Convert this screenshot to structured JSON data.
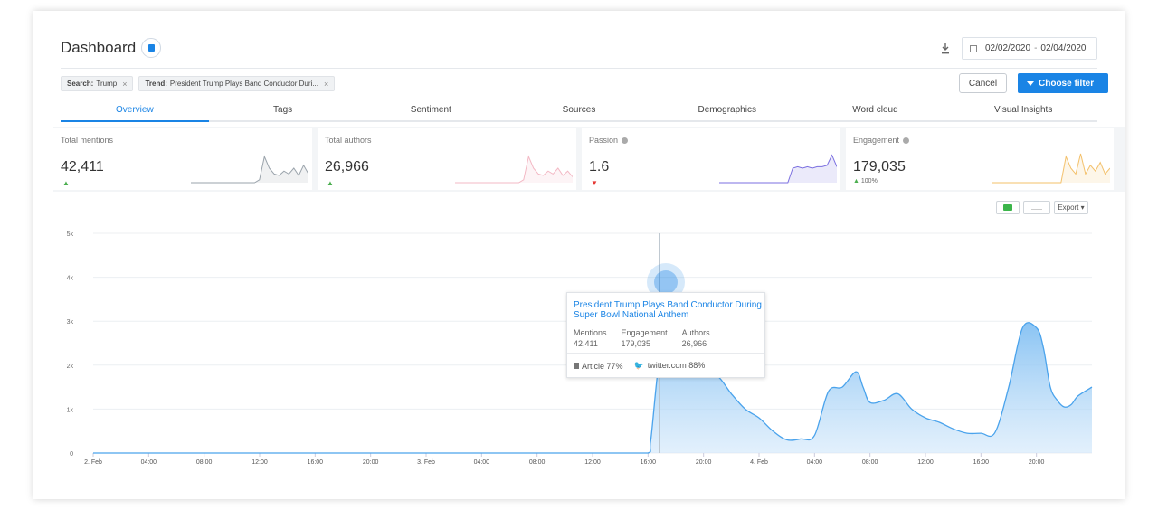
{
  "header": {
    "title": "Dashboard"
  },
  "date_range": {
    "from": "02/02/2020",
    "separator": "-",
    "to": "02/04/2020"
  },
  "filters": [
    {
      "key": "Search:",
      "value": "Trump"
    },
    {
      "key": "Trend:",
      "value": "President Trump Plays Band Conductor Duri..."
    }
  ],
  "filter_remove_glyph": "×",
  "buttons": {
    "cancel": "Cancel",
    "choose_filter": "Choose filter"
  },
  "tabs": [
    "Overview",
    "Tags",
    "Sentiment",
    "Sources",
    "Demographics",
    "Word cloud",
    "Visual Insights"
  ],
  "active_tab": "Overview",
  "cards": [
    {
      "label": "Total mentions",
      "value": "42,411",
      "trend": "up",
      "color": "#9aa3ab"
    },
    {
      "label": "Total authors",
      "value": "26,966",
      "trend": "up",
      "color": "#f3b8c4"
    },
    {
      "label": "Passion",
      "value": "1.6",
      "trend": "down",
      "color": "#7b6fe0"
    },
    {
      "label": "Engagement",
      "value": "179,035",
      "trend": "up",
      "sub": "100%",
      "color": "#f3c06a"
    }
  ],
  "chart_tools": {
    "export": "Export"
  },
  "tooltip": {
    "title": "President Trump Plays Band Conductor During Super Bowl National Anthem",
    "stats": [
      {
        "label": "Mentions",
        "value": "42,411"
      },
      {
        "label": "Engagement",
        "value": "179,035"
      },
      {
        "label": "Authors",
        "value": "26,966"
      }
    ],
    "article": "Article 77%",
    "twitter": "twitter.com 88%"
  },
  "colors": {
    "accent": "#1a84e5",
    "area_fill": "#a9d3f5",
    "up": "#4caf50",
    "down": "#e53935"
  },
  "chart_data": {
    "type": "area",
    "title": "",
    "xlabel": "",
    "ylabel": "",
    "x_ticks": [
      "2. Feb",
      "04:00",
      "08:00",
      "12:00",
      "16:00",
      "20:00",
      "3. Feb",
      "04:00",
      "08:00",
      "12:00",
      "16:00",
      "20:00",
      "4. Feb",
      "04:00",
      "08:00",
      "12:00",
      "16:00",
      "20:00"
    ],
    "y_ticks": [
      "0",
      "1k",
      "2k",
      "3k",
      "4k",
      "5k"
    ],
    "ylim": [
      0,
      5000
    ],
    "xlim": [
      0,
      72
    ],
    "grid": true,
    "series": [
      {
        "x": [
          0,
          4,
          8,
          12,
          16,
          20,
          24,
          28,
          32,
          36,
          38,
          40,
          40.2,
          41,
          42,
          43,
          44,
          45,
          46,
          47,
          48,
          49,
          50,
          51,
          52,
          53,
          54,
          55,
          55.5,
          56,
          57,
          58,
          59,
          60,
          61,
          62,
          63,
          64,
          65,
          66,
          67,
          68,
          68.5,
          69,
          69.5,
          70,
          70.5,
          71,
          72
        ],
        "y": [
          0,
          0,
          0,
          0,
          0,
          0,
          0,
          0,
          0,
          0,
          0,
          0,
          300,
          2500,
          2250,
          1850,
          1750,
          1750,
          1350,
          1000,
          800,
          500,
          300,
          320,
          400,
          1400,
          1500,
          1850,
          1500,
          1150,
          1200,
          1350,
          1000,
          800,
          700,
          550,
          450,
          450,
          460,
          1500,
          2850,
          2850,
          2400,
          1500,
          1200,
          1050,
          1100,
          1300,
          1500
        ]
      }
    ],
    "hover_x": 40.8
  },
  "sparklines": [
    [
      0,
      0,
      0,
      0,
      0,
      0,
      0,
      0,
      0,
      0,
      0,
      0,
      0,
      0,
      0.1,
      0.9,
      0.5,
      0.3,
      0.25,
      0.4,
      0.3,
      0.5,
      0.25,
      0.6,
      0.3
    ],
    [
      0,
      0,
      0,
      0,
      0,
      0,
      0,
      0,
      0,
      0,
      0,
      0,
      0,
      0,
      0.1,
      0.9,
      0.5,
      0.3,
      0.25,
      0.4,
      0.3,
      0.5,
      0.25,
      0.4,
      0.2
    ],
    [
      0,
      0,
      0,
      0,
      0,
      0,
      0,
      0,
      0,
      0,
      0,
      0,
      0,
      0,
      0,
      0.5,
      0.55,
      0.5,
      0.55,
      0.5,
      0.55,
      0.55,
      0.6,
      0.95,
      0.55
    ],
    [
      0,
      0,
      0,
      0,
      0,
      0,
      0,
      0,
      0,
      0,
      0,
      0,
      0,
      0,
      0,
      0.9,
      0.5,
      0.3,
      1.0,
      0.3,
      0.6,
      0.4,
      0.7,
      0.3,
      0.5
    ]
  ]
}
